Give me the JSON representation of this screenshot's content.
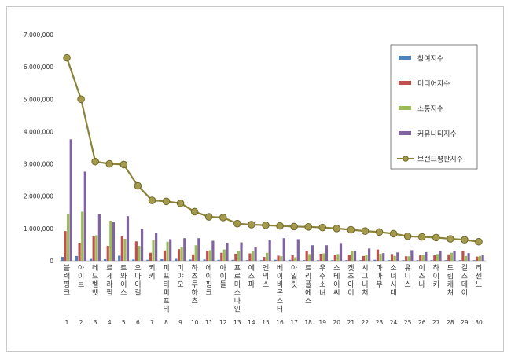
{
  "chart_data": {
    "type": "bar",
    "title": "",
    "xlabel": "",
    "ylabel": "",
    "ylim": [
      0,
      7000000
    ],
    "yticks": [
      "0",
      "1,000,000",
      "2,000,000",
      "3,000,000",
      "4,000,000",
      "5,000,000",
      "6,000,000",
      "7,000,000"
    ],
    "grid": false,
    "legend_position": "right",
    "ranks": [
      "1",
      "2",
      "3",
      "4",
      "5",
      "6",
      "7",
      "8",
      "9",
      "10",
      "11",
      "12",
      "13",
      "14",
      "15",
      "16",
      "17",
      "18",
      "19",
      "20",
      "21",
      "22",
      "23",
      "24",
      "25",
      "26",
      "27",
      "28",
      "29",
      "30"
    ],
    "categories": [
      "블랙핑크",
      "아이브",
      "레드벨벳",
      "르세라핌",
      "트와이스",
      "오마이걸",
      "키키",
      "피프티피프티",
      "미야오",
      "하츠투하츠",
      "에이핑크",
      "아이들",
      "프로미스나인",
      "에스파",
      "엔믹스",
      "베이비몬스터",
      "아일릿",
      "트리플에스",
      "우주소녀",
      "스테이씨",
      "캣츠아이",
      "시그니처",
      "마마무",
      "소녀시대",
      "유니스",
      "이즈나",
      "하이키",
      "드림캐쳐",
      "걸스데이",
      "리센느"
    ],
    "series": [
      {
        "name": "참여지수",
        "color": "#4f81bd",
        "values": [
          120000,
          150000,
          60000,
          50000,
          160000,
          40000,
          30000,
          50000,
          60000,
          40000,
          40000,
          30000,
          30000,
          20000,
          20000,
          30000,
          30000,
          20000,
          20000,
          20000,
          20000,
          20000,
          30000,
          20000,
          20000,
          20000,
          20000,
          20000,
          20000,
          20000
        ]
      },
      {
        "name": "미디어지수",
        "color": "#c0504d",
        "values": [
          920000,
          560000,
          760000,
          460000,
          760000,
          600000,
          250000,
          320000,
          360000,
          200000,
          310000,
          250000,
          220000,
          230000,
          120000,
          160000,
          170000,
          310000,
          220000,
          190000,
          190000,
          150000,
          350000,
          210000,
          140000,
          170000,
          170000,
          200000,
          310000,
          130000
        ]
      },
      {
        "name": "소통지수",
        "color": "#9bbb59",
        "values": [
          1460000,
          1520000,
          790000,
          1240000,
          680000,
          460000,
          640000,
          590000,
          420000,
          480000,
          330000,
          350000,
          310000,
          300000,
          250000,
          140000,
          110000,
          210000,
          230000,
          210000,
          310000,
          190000,
          220000,
          150000,
          140000,
          170000,
          210000,
          250000,
          150000,
          150000
        ]
      },
      {
        "name": "커뮤니티지수",
        "color": "#8064a2",
        "values": [
          3760000,
          2760000,
          1440000,
          1200000,
          1380000,
          980000,
          870000,
          670000,
          700000,
          700000,
          620000,
          560000,
          570000,
          420000,
          640000,
          700000,
          670000,
          480000,
          480000,
          550000,
          310000,
          380000,
          240000,
          260000,
          330000,
          270000,
          300000,
          310000,
          240000,
          170000
        ]
      },
      {
        "name": "브랜드평판지수",
        "color": "#8a8238",
        "values": [
          6280000,
          5000000,
          3070000,
          3000000,
          2980000,
          2320000,
          1870000,
          1840000,
          1780000,
          1520000,
          1360000,
          1340000,
          1150000,
          1120000,
          1100000,
          1080000,
          1060000,
          1050000,
          1030000,
          1000000,
          960000,
          920000,
          890000,
          840000,
          760000,
          740000,
          720000,
          680000,
          650000,
          590000
        ]
      }
    ]
  }
}
